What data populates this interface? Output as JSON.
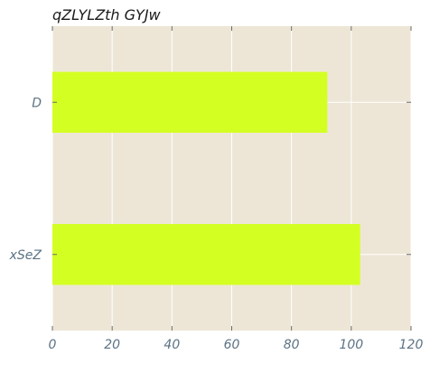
{
  "chart_data": {
    "type": "bar",
    "orientation": "horizontal",
    "title": "qZLYLZth  GYJw",
    "categories": [
      "D",
      "xSeZ"
    ],
    "values": [
      92,
      103
    ],
    "xlim": [
      0,
      120
    ],
    "x_ticks": [
      0,
      20,
      40,
      60,
      80,
      100,
      120
    ],
    "grid": true,
    "legend": "none",
    "colors": {
      "background": "#ede6d6",
      "bar": "#d4ff22",
      "grid": "#ffffff",
      "tick_label": "#5c7384",
      "title": "#1a1a1a"
    }
  }
}
